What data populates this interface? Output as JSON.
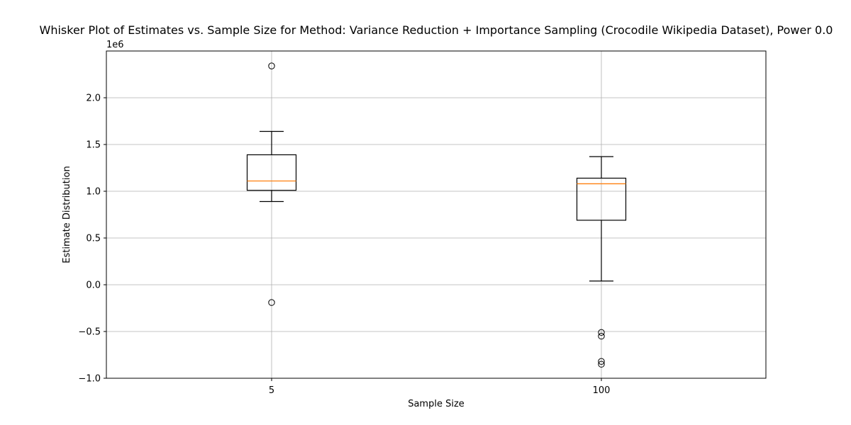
{
  "chart_data": {
    "type": "boxplot",
    "title": "Whisker Plot of Estimates vs. Sample Size for Method: Variance Reduction + Importance Sampling (Crocodile Wikipedia Dataset), Power 0.0",
    "xlabel": "Sample Size",
    "ylabel": "Estimate Distribution",
    "y_offset_label": "1e6",
    "y_scale": 1000000,
    "ylim": [
      -1000000,
      2500000
    ],
    "yticks": [
      -1000000,
      -500000,
      0,
      500000,
      1000000,
      1500000,
      2000000
    ],
    "ytick_labels": [
      "−1.0",
      "−0.5",
      "0.0",
      "0.5",
      "1.0",
      "1.5",
      "2.0"
    ],
    "grid": true,
    "categories": [
      "5",
      "100"
    ],
    "boxes": [
      {
        "category": "5",
        "whisker_low": 890000,
        "q1": 1010000,
        "median": 1110000,
        "q3": 1390000,
        "whisker_high": 1640000,
        "outliers": [
          2340000,
          -190000
        ]
      },
      {
        "category": "100",
        "whisker_low": 40000,
        "q1": 690000,
        "median": 1080000,
        "q3": 1140000,
        "whisker_high": 1370000,
        "outliers": [
          -510000,
          -550000,
          -820000,
          -850000
        ]
      }
    ],
    "colors": {
      "box": "#000000",
      "median": "#ff7f0e",
      "grid": "#b0b0b0"
    }
  }
}
